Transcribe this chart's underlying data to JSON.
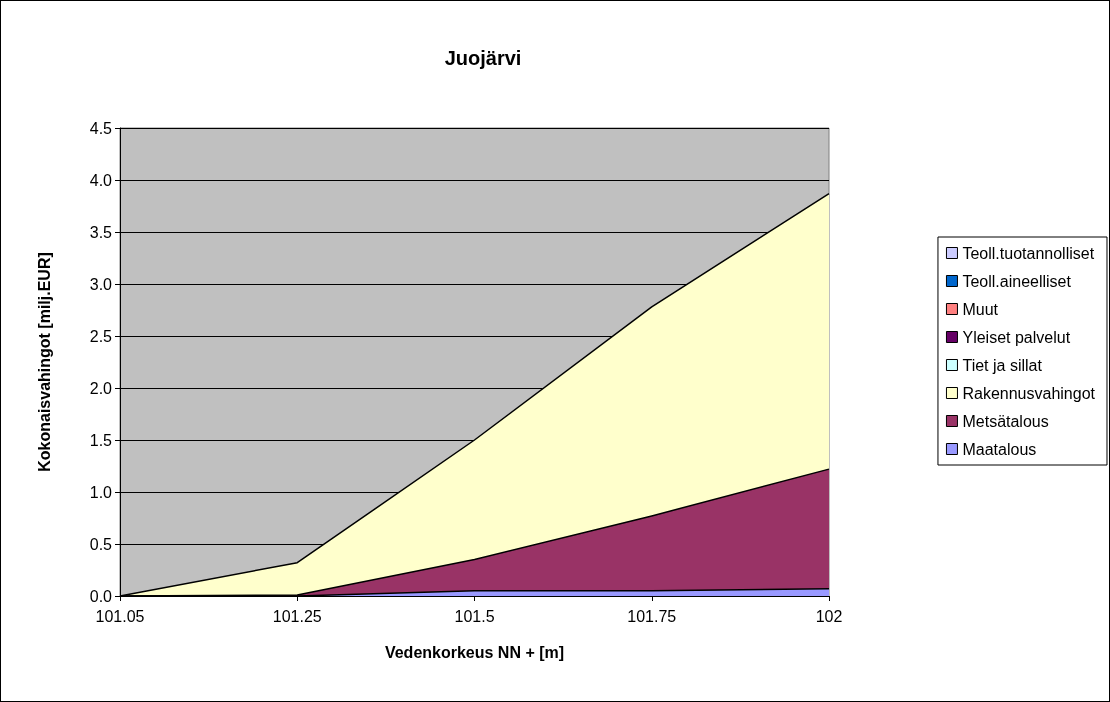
{
  "chart_data": {
    "type": "area",
    "stacked": true,
    "title": "Juojärvi",
    "xlabel": "Vedenkorkeus NN + [m]",
    "ylabel": "Kokonaisvahingot [milj.EUR]",
    "categories": [
      "101.05",
      "101.25",
      "101.5",
      "101.75",
      "102"
    ],
    "series": [
      {
        "name": "Maatalous",
        "color": "#9999ff",
        "values": [
          0,
          0,
          0.05,
          0.05,
          0.07
        ]
      },
      {
        "name": "Metsätalous",
        "color": "#993366",
        "values": [
          0,
          0.01,
          0.3,
          0.72,
          1.15
        ]
      },
      {
        "name": "Rakennusvahingot",
        "color": "#ffffcc",
        "values": [
          0,
          0.31,
          1.15,
          2.01,
          2.65
        ]
      },
      {
        "name": "Tiet ja sillat",
        "color": "#ccffff",
        "values": [
          null,
          null,
          null,
          null,
          null
        ]
      },
      {
        "name": "Yleiset palvelut",
        "color": "#660066",
        "values": [
          null,
          null,
          null,
          null,
          null
        ]
      },
      {
        "name": "Muut",
        "color": "#ff8080",
        "values": [
          null,
          null,
          null,
          null,
          null
        ]
      },
      {
        "name": "Teoll.aineelliset",
        "color": "#0066cc",
        "values": [
          null,
          null,
          null,
          null,
          null
        ]
      },
      {
        "name": "Teoll.tuotannolliset",
        "color": "#ccccff",
        "values": [
          null,
          null,
          null,
          null,
          null
        ]
      }
    ],
    "ylim": [
      0,
      4.5
    ],
    "yticks": [
      {
        "value": 0,
        "label": "0.0"
      },
      0.5,
      {
        "value": 1,
        "label": "1.0"
      },
      1.5,
      {
        "value": 2,
        "label": "2.0"
      },
      2.5,
      {
        "value": 3,
        "label": "3.0"
      },
      3.5,
      {
        "value": 4,
        "label": "4.0"
      },
      4.5
    ],
    "grid": "y",
    "legend": "right",
    "marker": "none"
  }
}
